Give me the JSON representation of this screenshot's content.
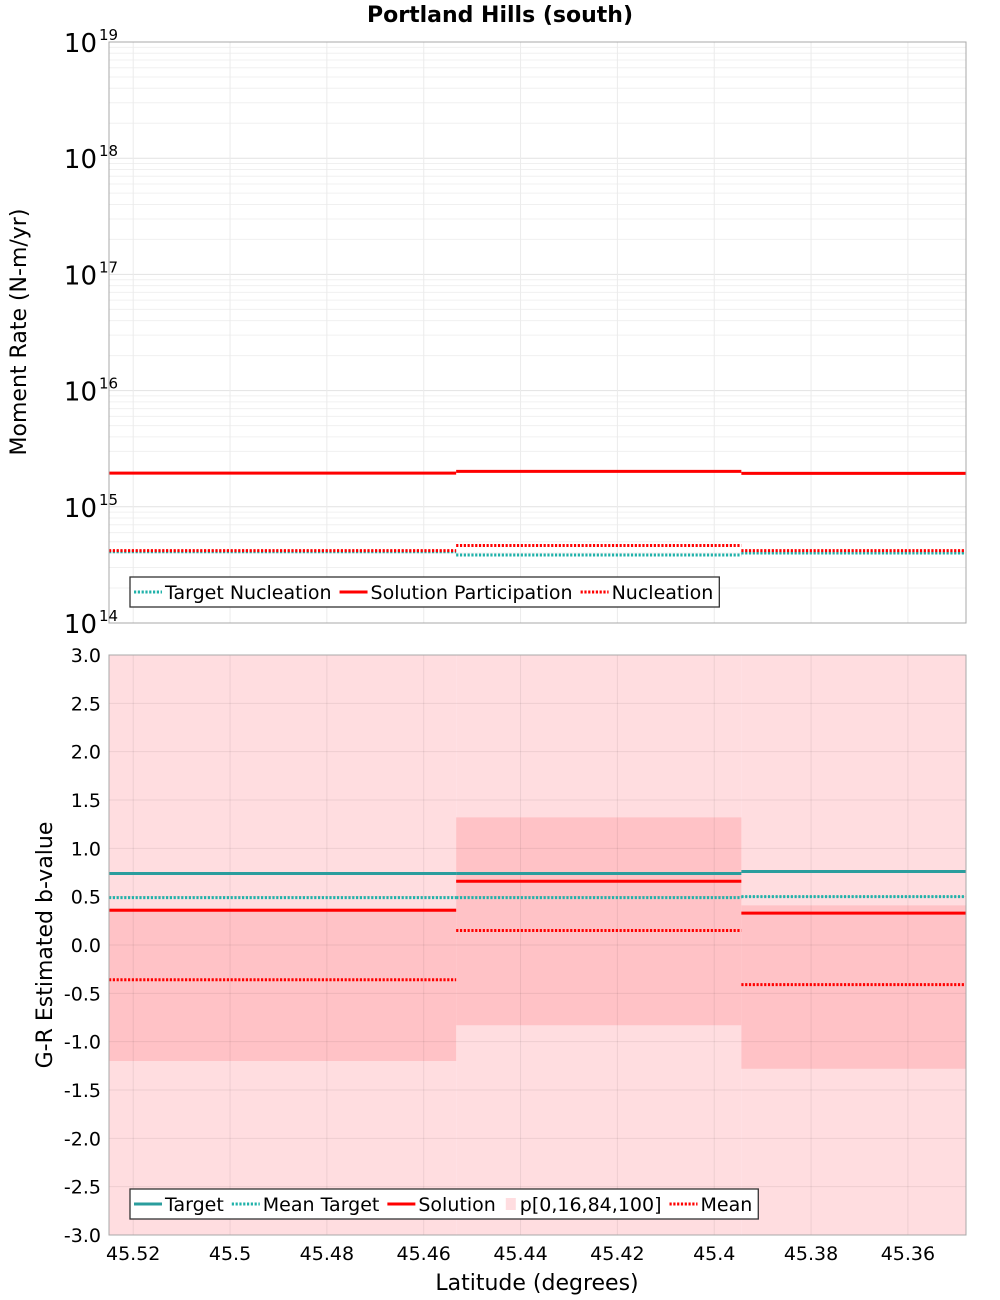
{
  "chart_data": [
    {
      "type": "line",
      "title": "Portland Hills (south)",
      "ylabel": "Moment Rate (N-m/yr)",
      "xlabel": "",
      "yscale": "log",
      "ylim": [
        100000000000000.0,
        1e+19
      ],
      "xlim": [
        45.525,
        45.348
      ],
      "y_tick_base": "10",
      "y_tick_exponents": [
        "14",
        "15",
        "16",
        "17",
        "18",
        "19"
      ],
      "bin_edges": [
        45.525,
        45.4533,
        45.3944,
        45.348
      ],
      "series": [
        {
          "name": "Target Nucleation",
          "style": "dotted",
          "color": "#20b2aa",
          "values": [
            410000000000000.0,
            385000000000000.0,
            400000000000000.0
          ]
        },
        {
          "name": "Solution Participation",
          "style": "solid",
          "color": "#ff0000",
          "values": [
            1950000000000000.0,
            2020000000000000.0,
            1940000000000000.0
          ]
        },
        {
          "name": "Nucleation",
          "style": "dotted",
          "color": "#ff0000",
          "values": [
            420000000000000.0,
            465000000000000.0,
            420000000000000.0
          ]
        }
      ],
      "legend": [
        "Target Nucleation",
        "Solution Participation",
        "Nucleation"
      ],
      "legend_position": "bottom-left",
      "grid": true
    },
    {
      "type": "line",
      "title": "",
      "ylabel": "G-R Estimated b-value",
      "xlabel": "Latitude (degrees)",
      "ylim": [
        -3.0,
        3.0
      ],
      "xlim": [
        45.525,
        45.348
      ],
      "y_ticks": [
        "3.0",
        "2.5",
        "2.0",
        "1.5",
        "1.0",
        "0.5",
        "0.0",
        "-0.5",
        "-1.0",
        "-1.5",
        "-2.0",
        "-2.5",
        "-3.0"
      ],
      "x_ticks": [
        "45.52",
        "45.5",
        "45.48",
        "45.46",
        "45.44",
        "45.42",
        "45.4",
        "45.38",
        "45.36"
      ],
      "bin_edges": [
        45.525,
        45.4533,
        45.3944,
        45.348
      ],
      "bands": [
        {
          "name": "p[0,100]",
          "low": [
            -3.0,
            -3.0,
            -3.0
          ],
          "high": [
            3.0,
            3.0,
            3.0
          ],
          "color": "#ffdde0"
        },
        {
          "name": "p[16,84]",
          "low": [
            -1.2,
            -0.83,
            -1.28
          ],
          "high": [
            0.38,
            1.32,
            0.41
          ],
          "color": "#ffc2c6"
        }
      ],
      "series": [
        {
          "name": "Target",
          "style": "solid",
          "color": "#2a9d9d",
          "values": [
            0.74,
            0.74,
            0.76
          ]
        },
        {
          "name": "Mean Target",
          "style": "dotted",
          "color": "#20b2aa",
          "values": [
            0.49,
            0.49,
            0.5
          ]
        },
        {
          "name": "Solution",
          "style": "solid",
          "color": "#ff0000",
          "values": [
            0.36,
            0.66,
            0.33
          ]
        },
        {
          "name": "Mean",
          "style": "dotted",
          "color": "#ff0000",
          "values": [
            -0.36,
            0.15,
            -0.41
          ]
        }
      ],
      "legend": [
        "Target",
        "Mean Target",
        "Solution",
        "p[0,16,84,100]",
        "Mean"
      ],
      "legend_position": "bottom-left",
      "grid": true
    }
  ]
}
